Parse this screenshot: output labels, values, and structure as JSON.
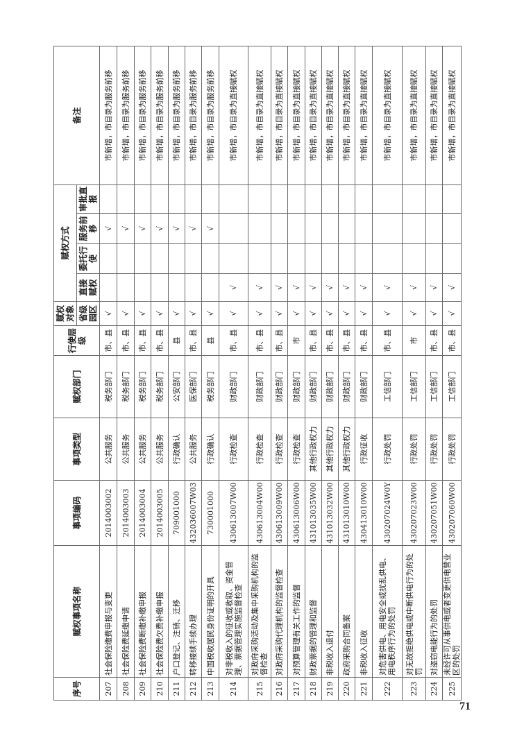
{
  "headers": {
    "seq": "序号",
    "name": "赋权事项名称",
    "code": "事项编码",
    "type": "事项类型",
    "dept": "赋权部门",
    "level": "行使层级",
    "target": "赋权对象",
    "target_sub": "省级园区",
    "method": "赋权方式",
    "direct": "直接赋权",
    "entrust": "委托行使",
    "service": "服务前移",
    "approval": "审批直报",
    "remark": "备注"
  },
  "check_mark": "√",
  "rows": [
    {
      "seq": "207",
      "name": "社会保险缴费申报与变更",
      "code": "2014003002",
      "type": "公共服务",
      "dept": "税务部门",
      "level": "市、县",
      "park": "√",
      "direct": "",
      "entrust": "",
      "service": "√",
      "approval": "",
      "remark": "市新增，市目录为服务前移"
    },
    {
      "seq": "208",
      "name": "社会保险费延缴申请",
      "code": "2014003003",
      "type": "公共服务",
      "dept": "税务部门",
      "level": "市、县",
      "park": "√",
      "direct": "",
      "entrust": "",
      "service": "√",
      "approval": "",
      "remark": "市新增，市目录为服务前移"
    },
    {
      "seq": "209",
      "name": "社会保险费断缴补缴申报",
      "code": "2014003004",
      "type": "公共服务",
      "dept": "税务部门",
      "level": "市、县",
      "park": "√",
      "direct": "",
      "entrust": "",
      "service": "√",
      "approval": "",
      "remark": "市新增，市目录为服务前移"
    },
    {
      "seq": "210",
      "name": "社会保险费欠费补缴申报",
      "code": "2014003005",
      "type": "公共服务",
      "dept": "税务部门",
      "level": "市、县",
      "park": "√",
      "direct": "",
      "entrust": "",
      "service": "√",
      "approval": "",
      "remark": "市新增，市目录为服务前移"
    },
    {
      "seq": "211",
      "name": "户口登记、注销、迁移",
      "code": "709001000",
      "type": "行政确认",
      "dept": "公安部门",
      "level": "县",
      "park": "√",
      "direct": "",
      "entrust": "",
      "service": "√",
      "approval": "",
      "remark": "市新增，市目录为服务前移"
    },
    {
      "seq": "212",
      "name": "转移接续手续办理",
      "code": "432036007W03",
      "type": "公共服务",
      "dept": "医保部门",
      "level": "市、县",
      "park": "√",
      "direct": "",
      "entrust": "",
      "service": "√",
      "approval": "",
      "remark": "市新增，市目录为服务前移"
    },
    {
      "seq": "213",
      "name": "中国税收居民身份证明的开具",
      "code": "730001000",
      "type": "行政确认",
      "dept": "税务部门",
      "level": "县",
      "park": "√",
      "direct": "",
      "entrust": "",
      "service": "√",
      "approval": "",
      "remark": "市新增，市目录为服务前移"
    },
    {
      "seq": "214",
      "name": "对非税收入的征收或收取、资金管理、票据管理实施监督检查",
      "code": "430613007W00",
      "type": "行政检查",
      "dept": "财政部门",
      "level": "市、县",
      "park": "√",
      "direct": "√",
      "entrust": "",
      "service": "",
      "approval": "",
      "remark": "市新增，市目录为直接赋权"
    },
    {
      "seq": "215",
      "name": "对政府采购活动及集中采购机构的监督检查",
      "code": "430613004W00",
      "type": "行政检查",
      "dept": "财政部门",
      "level": "市、县",
      "park": "√",
      "direct": "√",
      "entrust": "",
      "service": "",
      "approval": "",
      "remark": "市新增，市目录为直接赋权"
    },
    {
      "seq": "216",
      "name": "对政府采购代理机构的监督检查",
      "code": "430613009W00",
      "type": "行政检查",
      "dept": "财政部门",
      "level": "市、县",
      "park": "√",
      "direct": "√",
      "entrust": "",
      "service": "",
      "approval": "",
      "remark": "市新增，市目录为直接赋权"
    },
    {
      "seq": "217",
      "name": "对预算管理有关工作的监督",
      "code": "430613006W00",
      "type": "行政检查",
      "dept": "财政部门",
      "level": "市",
      "park": "√",
      "direct": "√",
      "entrust": "",
      "service": "",
      "approval": "",
      "remark": "市新增，市目录为直接赋权"
    },
    {
      "seq": "218",
      "name": "财政票据的管理和监督",
      "code": "431013035W00",
      "type": "其他行政权力",
      "dept": "财政部门",
      "level": "市、县",
      "park": "√",
      "direct": "√",
      "entrust": "",
      "service": "",
      "approval": "",
      "remark": "市新增，市目录为直接赋权"
    },
    {
      "seq": "219",
      "name": "非税收入退付",
      "code": "431013032W00",
      "type": "其他行政权力",
      "dept": "财政部门",
      "level": "市、县",
      "park": "√",
      "direct": "√",
      "entrust": "",
      "service": "",
      "approval": "",
      "remark": "市新增，市目录为直接赋权"
    },
    {
      "seq": "220",
      "name": "政府采购合同备案",
      "code": "431013010W00",
      "type": "其他行政权力",
      "dept": "财政部门",
      "level": "市、县",
      "park": "√",
      "direct": "√",
      "entrust": "",
      "service": "",
      "approval": "",
      "remark": "市新增，市目录为直接赋权"
    },
    {
      "seq": "221",
      "name": "非税收入征收",
      "code": "430413010W00",
      "type": "行政征收",
      "dept": "财政部门",
      "level": "市、县",
      "park": "√",
      "direct": "√",
      "entrust": "",
      "service": "",
      "approval": "",
      "remark": "市新增，市目录为直接赋权"
    },
    {
      "seq": "222",
      "name": "对危害供电、用电安全或扰乱供电、用电秩序行为的处罚",
      "code": "430207024W0Y",
      "type": "行政处罚",
      "dept": "工信部门",
      "level": "市、县",
      "park": "√",
      "direct": "√",
      "entrust": "",
      "service": "",
      "approval": "",
      "remark": "市新增，市目录为直接赋权"
    },
    {
      "seq": "223",
      "name": "对无故拒绝供电或中断供电行为的处罚",
      "code": "430207023W00",
      "type": "行政处罚",
      "dept": "工信部门",
      "level": "市",
      "park": "√",
      "direct": "√",
      "entrust": "",
      "service": "",
      "approval": "",
      "remark": "市新增，市目录为直接赋权"
    },
    {
      "seq": "224",
      "name": "对盗窃电能行为的处罚",
      "code": "430207051W00",
      "type": "行政处罚",
      "dept": "工信部门",
      "level": "市、县",
      "park": "√",
      "direct": "√",
      "entrust": "",
      "service": "",
      "approval": "",
      "remark": "市新增，市目录为直接赋权"
    },
    {
      "seq": "225",
      "name": "未经许可从事供电或者变更供电营业区的处罚",
      "code": "430207060W00",
      "type": "行政处罚",
      "dept": "工信部门",
      "level": "市、县",
      "park": "√",
      "direct": "√",
      "entrust": "",
      "service": "",
      "approval": "",
      "remark": "市新增，市目录为直接赋权"
    }
  ],
  "page_number": "71"
}
